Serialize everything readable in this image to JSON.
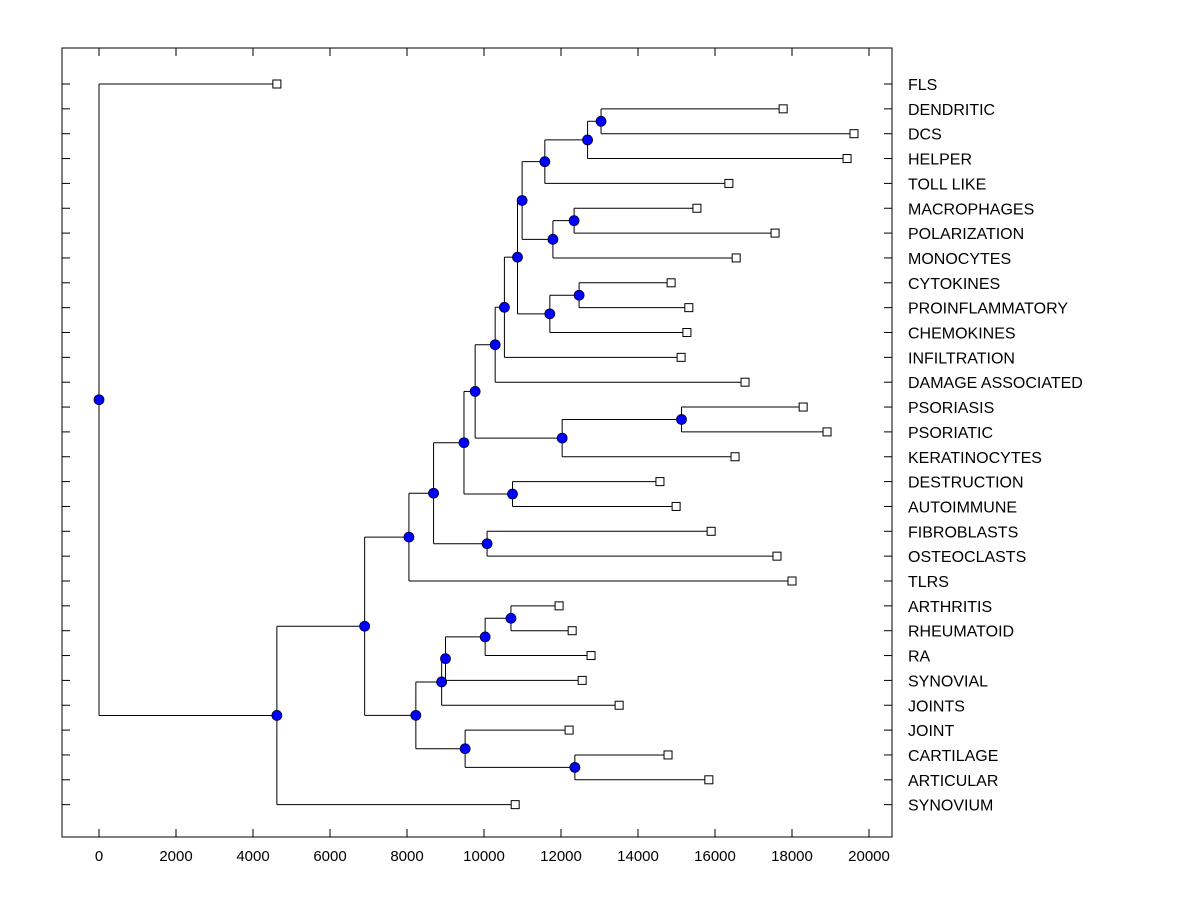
{
  "chart_data": {
    "type": "dendrogram",
    "title": "",
    "xlabel": "",
    "ylabel": "",
    "xlim": [
      -1000,
      20600
    ],
    "xticks": [
      0,
      2000,
      4000,
      6000,
      8000,
      10000,
      12000,
      14000,
      16000,
      18000,
      20000
    ],
    "grid": false,
    "legend": "none",
    "colors": {
      "node_fill": "#0000ff",
      "leaf_fill": "#ffffff",
      "line": "#000000"
    },
    "leaves": [
      {
        "label": "FLS",
        "x": 4620
      },
      {
        "label": "DENDRITIC",
        "x": 17770
      },
      {
        "label": "DCS",
        "x": 19610
      },
      {
        "label": "HELPER",
        "x": 19430
      },
      {
        "label": "TOLL LIKE",
        "x": 16360
      },
      {
        "label": "MACROPHAGES",
        "x": 15530
      },
      {
        "label": "POLARIZATION",
        "x": 17560
      },
      {
        "label": "MONOCYTES",
        "x": 16550
      },
      {
        "label": "CYTOKINES",
        "x": 14860
      },
      {
        "label": "PROINFLAMMATORY",
        "x": 15320
      },
      {
        "label": "CHEMOKINES",
        "x": 15270
      },
      {
        "label": "INFILTRATION",
        "x": 15120
      },
      {
        "label": "DAMAGE ASSOCIATED",
        "x": 16780
      },
      {
        "label": "PSORIASIS",
        "x": 18290
      },
      {
        "label": "PSORIATIC",
        "x": 18910
      },
      {
        "label": "KERATINOCYTES",
        "x": 16520
      },
      {
        "label": "DESTRUCTION",
        "x": 14570
      },
      {
        "label": "AUTOIMMUNE",
        "x": 14990
      },
      {
        "label": "FIBROBLASTS",
        "x": 15900
      },
      {
        "label": "OSTEOCLASTS",
        "x": 17610
      },
      {
        "label": "TLRS",
        "x": 18000
      },
      {
        "label": "ARTHRITIS",
        "x": 11950
      },
      {
        "label": "RHEUMATOID",
        "x": 12290
      },
      {
        "label": "RA",
        "x": 12780
      },
      {
        "label": "SYNOVIAL",
        "x": 12550
      },
      {
        "label": "JOINTS",
        "x": 13510
      },
      {
        "label": "JOINT",
        "x": 12210
      },
      {
        "label": "CARTILAGE",
        "x": 14780
      },
      {
        "label": "ARTICULAR",
        "x": 15840
      },
      {
        "label": "SYNOVIUM",
        "x": 10810
      }
    ],
    "nodes": [
      {
        "id": "n1",
        "x": 13040,
        "children": [
          "L1",
          "L2"
        ]
      },
      {
        "id": "n2",
        "x": 12690,
        "children": [
          "n1",
          "L3"
        ]
      },
      {
        "id": "n3",
        "x": 11580,
        "children": [
          "n2",
          "L4"
        ]
      },
      {
        "id": "n4",
        "x": 12340,
        "children": [
          "L5",
          "L6"
        ]
      },
      {
        "id": "n5",
        "x": 11790,
        "children": [
          "n4",
          "L7"
        ]
      },
      {
        "id": "n6",
        "x": 10990,
        "children": [
          "n3",
          "n5"
        ]
      },
      {
        "id": "n7",
        "x": 12470,
        "children": [
          "L8",
          "L9"
        ]
      },
      {
        "id": "n8",
        "x": 11710,
        "children": [
          "n7",
          "L10"
        ]
      },
      {
        "id": "n9",
        "x": 10870,
        "children": [
          "n6",
          "n8"
        ]
      },
      {
        "id": "n10",
        "x": 10530,
        "children": [
          "n9",
          "L11"
        ]
      },
      {
        "id": "n11",
        "x": 10290,
        "children": [
          "n10",
          "L12"
        ]
      },
      {
        "id": "n12",
        "x": 15130,
        "children": [
          "L13",
          "L14"
        ]
      },
      {
        "id": "n13",
        "x": 12030,
        "children": [
          "n12",
          "L15"
        ]
      },
      {
        "id": "n14",
        "x": 9770,
        "children": [
          "n11",
          "n13"
        ]
      },
      {
        "id": "n15",
        "x": 10740,
        "children": [
          "L16",
          "L17"
        ]
      },
      {
        "id": "n16",
        "x": 9480,
        "children": [
          "n14",
          "n15"
        ]
      },
      {
        "id": "n17",
        "x": 10080,
        "children": [
          "L18",
          "L19"
        ]
      },
      {
        "id": "n18",
        "x": 8690,
        "children": [
          "n16",
          "n17"
        ]
      },
      {
        "id": "n19",
        "x": 8050,
        "children": [
          "n18",
          "L20"
        ]
      },
      {
        "id": "n20",
        "x": 10700,
        "children": [
          "L21",
          "L22"
        ]
      },
      {
        "id": "n21",
        "x": 10030,
        "children": [
          "n20",
          "L23"
        ]
      },
      {
        "id": "n22",
        "x": 9000,
        "children": [
          "n21",
          "L24"
        ]
      },
      {
        "id": "n23",
        "x": 8900,
        "children": [
          "n22",
          "L25"
        ]
      },
      {
        "id": "n24",
        "x": 12360,
        "children": [
          "L27",
          "L28"
        ]
      },
      {
        "id": "n25",
        "x": 9510,
        "children": [
          "L26",
          "n24"
        ]
      },
      {
        "id": "n26",
        "x": 8230,
        "children": [
          "n23",
          "n25"
        ]
      },
      {
        "id": "n27",
        "x": 6900,
        "children": [
          "n19",
          "n26"
        ]
      },
      {
        "id": "n28",
        "x": 4620,
        "children": [
          "n27",
          "L29"
        ]
      },
      {
        "id": "n29",
        "x": 0,
        "children": [
          "L0",
          "n28"
        ]
      }
    ]
  }
}
